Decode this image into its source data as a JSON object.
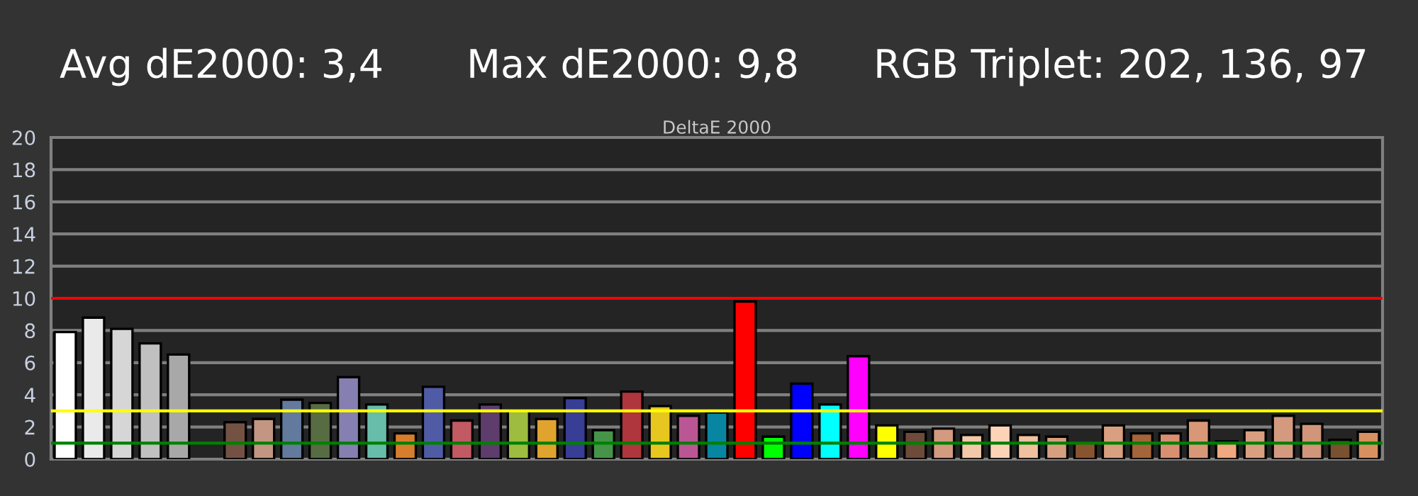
{
  "chart_data": {
    "type": "bar",
    "title": "DeltaE 2000",
    "annotations": [
      "Avg dE2000: 3,4",
      "Max dE2000: 9,8",
      "RGB Triplet: 202, 136, 97"
    ],
    "categories": [
      null,
      null,
      null,
      null,
      null,
      null,
      null,
      null,
      null,
      null,
      null,
      null,
      null,
      null,
      null,
      null,
      null,
      null,
      null,
      null,
      null,
      null,
      null,
      null,
      null,
      null,
      null,
      null,
      null,
      null,
      null,
      null,
      null,
      null,
      null,
      null,
      null,
      null,
      null,
      null,
      null,
      null,
      null,
      null,
      null,
      null,
      null
    ],
    "values": [
      7.9,
      8.8,
      8.1,
      7.2,
      6.5,
      null,
      2.3,
      2.5,
      3.7,
      3.5,
      5.1,
      3.4,
      1.6,
      4.5,
      2.4,
      3.4,
      3.0,
      2.5,
      3.8,
      1.8,
      4.2,
      3.3,
      2.7,
      2.9,
      9.8,
      1.4,
      4.7,
      3.4,
      6.4,
      2.1,
      1.7,
      1.9,
      1.5,
      2.1,
      1.5,
      1.4,
      1.0,
      2.1,
      1.6,
      1.6,
      2.4,
      1.1,
      1.8,
      2.7,
      2.2,
      1.2,
      1.7
    ],
    "colors": [
      "#ffffff",
      "#eaeaea",
      "#d6d6d6",
      "#c0c0c0",
      "#a8a8a8",
      null,
      "#735244",
      "#c29682",
      "#627a9d",
      "#576c43",
      "#8580b1",
      "#67bdaa",
      "#d67e2c",
      "#505ba6",
      "#c15a63",
      "#5e3c6c",
      "#9dbc40",
      "#e0a32e",
      "#383d96",
      "#469449",
      "#af363c",
      "#e7c71f",
      "#bb5695",
      "#0885a1",
      "#ff0000",
      "#00ff00",
      "#0000ff",
      "#00ffff",
      "#ff00ff",
      "#ffff00",
      "#6e4a3a",
      "#d39a80",
      "#f3c8a8",
      "#fdd3b8",
      "#f0c0a0",
      "#d6a080",
      "#8a5330",
      "#d8a080",
      "#a5643a",
      "#d89070",
      "#d89878",
      "#f0a880",
      "#d8a080",
      "#d49a80",
      "#d0957a",
      "#7a5030",
      "#d89060"
    ],
    "ylim": [
      0,
      20
    ],
    "yticks": [
      0,
      2,
      4,
      6,
      8,
      10,
      12,
      14,
      16,
      18,
      20
    ],
    "grid": "y",
    "ref_lines": [
      {
        "axis": "y",
        "value": 10,
        "color": "#ff0000"
      },
      {
        "axis": "y",
        "value": 3,
        "color": "#ffff00"
      },
      {
        "axis": "y",
        "value": 1,
        "color": "#008000"
      }
    ]
  }
}
